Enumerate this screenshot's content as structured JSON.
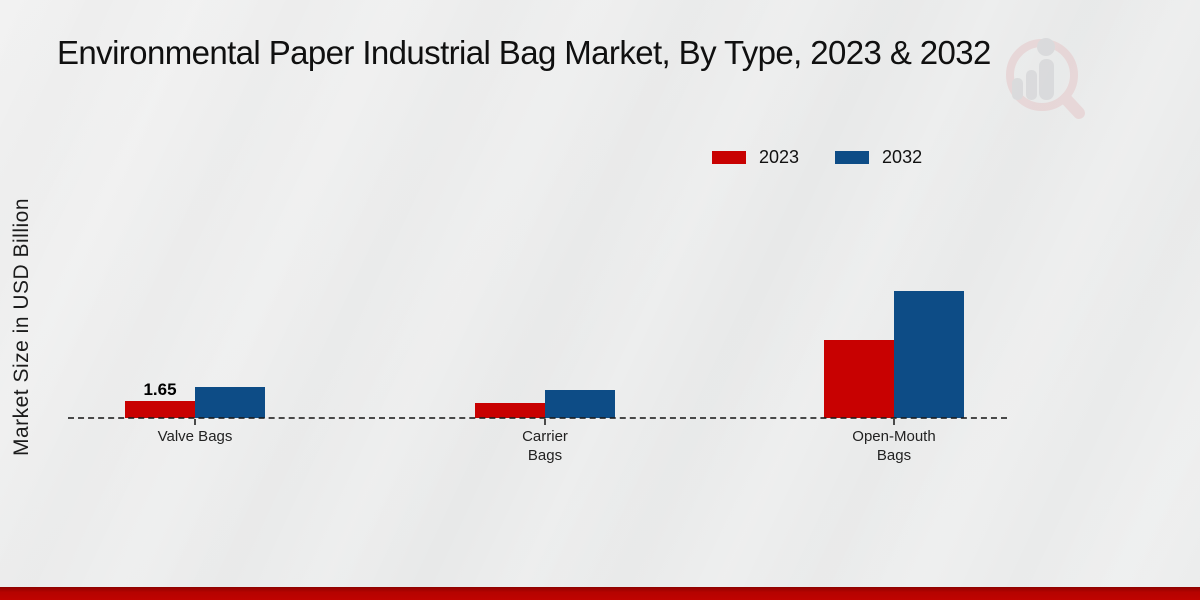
{
  "chart_data": {
    "type": "bar",
    "title": "Environmental Paper Industrial Bag Market, By Type, 2023 & 2032",
    "ylabel": "Market Size in USD Billion",
    "xlabel": "",
    "unit": "USD Billion",
    "legend_position": "top-right",
    "baseline_style": "dashed",
    "categories": [
      {
        "id": "valve-bags",
        "name": "Valve Bags",
        "lines": [
          "Valve Bags"
        ]
      },
      {
        "id": "carrier-bags",
        "name": "Carrier Bags",
        "lines": [
          "Carrier",
          "Bags"
        ]
      },
      {
        "id": "open-mouth-bags",
        "name": "Open-Mouth Bags",
        "lines": [
          "Open-Mouth",
          "Bags"
        ]
      }
    ],
    "series": [
      {
        "name": "2023",
        "color": "#c80101",
        "values": [
          1.65,
          1.4,
          7.4
        ]
      },
      {
        "name": "2032",
        "color": "#0d4c86",
        "values": [
          2.9,
          2.6,
          12.0
        ]
      }
    ],
    "data_labels": [
      {
        "series_index": 0,
        "category_index": 0,
        "text": "1.65"
      }
    ]
  },
  "colors": {
    "accent_red": "#c80101",
    "accent_blue": "#0d4c86",
    "footer_stripe": "#b50300",
    "background": "#e9eaea"
  },
  "watermark": {
    "name": "market-research-logo"
  }
}
